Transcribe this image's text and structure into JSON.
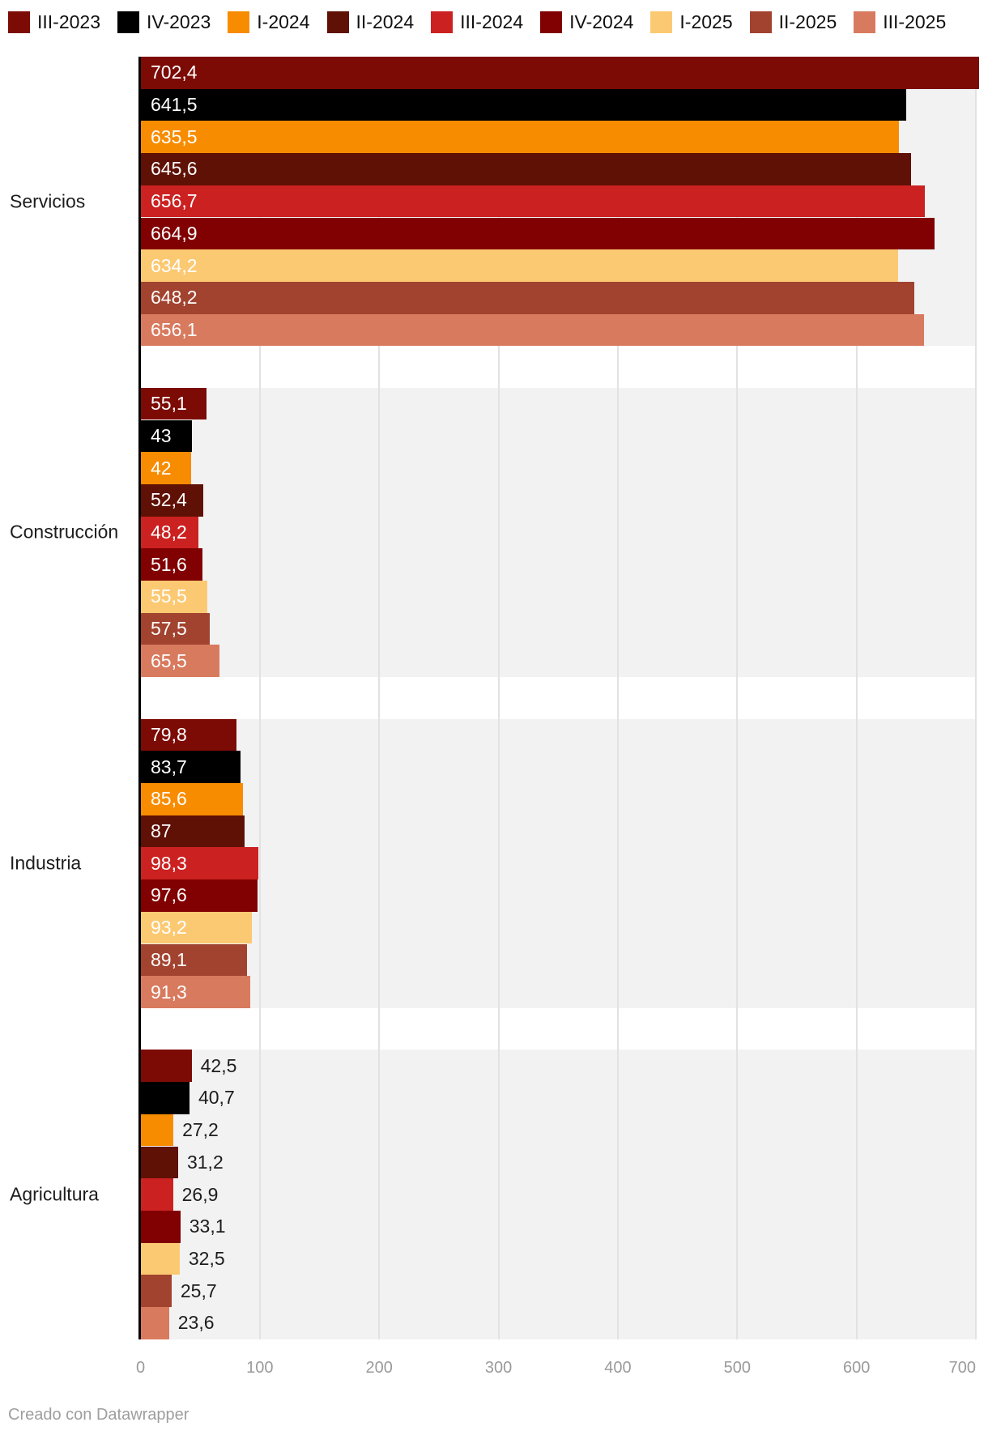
{
  "chart_data": {
    "type": "bar",
    "orientation": "horizontal",
    "title": "",
    "xlabel": "",
    "ylabel": "",
    "xlim": [
      0,
      700
    ],
    "grid": true,
    "legend_position": "top",
    "axis_ticks": [
      "0",
      "100",
      "200",
      "300",
      "400",
      "500",
      "600",
      "700"
    ],
    "series": [
      {
        "label": "III-2023",
        "color": "#7c0b06"
      },
      {
        "label": "IV-2023",
        "color": "#000000"
      },
      {
        "label": "I-2024",
        "color": "#f88c00"
      },
      {
        "label": "II-2024",
        "color": "#5f1105"
      },
      {
        "label": "III-2024",
        "color": "#cc2121"
      },
      {
        "label": "IV-2024",
        "color": "#810001"
      },
      {
        "label": "I-2025",
        "color": "#fcc973"
      },
      {
        "label": "II-2025",
        "color": "#a2432f"
      },
      {
        "label": "III-2025",
        "color": "#d87a5e"
      }
    ],
    "groups": [
      {
        "label": "Servicios",
        "values": [
          702.4,
          641.5,
          635.5,
          645.6,
          656.7,
          664.9,
          634.2,
          648.2,
          656.1
        ],
        "labels": [
          "702,4",
          "641,5",
          "635,5",
          "645,6",
          "656,7",
          "664,9",
          "634,2",
          "648,2",
          "656,1"
        ]
      },
      {
        "label": "Construcción",
        "values": [
          55.1,
          43,
          42,
          52.4,
          48.2,
          51.6,
          55.5,
          57.5,
          65.5
        ],
        "labels": [
          "55,1",
          "43",
          "42",
          "52,4",
          "48,2",
          "51,6",
          "55,5",
          "57,5",
          "65,5"
        ]
      },
      {
        "label": "Industria",
        "values": [
          79.8,
          83.7,
          85.6,
          87,
          98.3,
          97.6,
          93.2,
          89.1,
          91.3
        ],
        "labels": [
          "79,8",
          "83,7",
          "85,6",
          "87",
          "98,3",
          "97,6",
          "93,2",
          "89,1",
          "91,3"
        ]
      },
      {
        "label": "Agricultura",
        "values": [
          42.5,
          40.7,
          27.2,
          31.2,
          26.9,
          33.1,
          32.5,
          25.7,
          23.6
        ],
        "labels": [
          "42,5",
          "40,7",
          "27,2",
          "31,2",
          "26,9",
          "33,1",
          "32,5",
          "25,7",
          "23,6"
        ]
      }
    ],
    "colors": {
      "plot_band_background": "#f2f2f2",
      "gridline": "#e2e2e2",
      "axis_line": "#000000",
      "tick_text": "#9a9a9a",
      "label_text": "#1d1d1d",
      "bar_inner_label": "#ffffff"
    }
  },
  "footer": {
    "text": "Creado con Datawrapper"
  }
}
